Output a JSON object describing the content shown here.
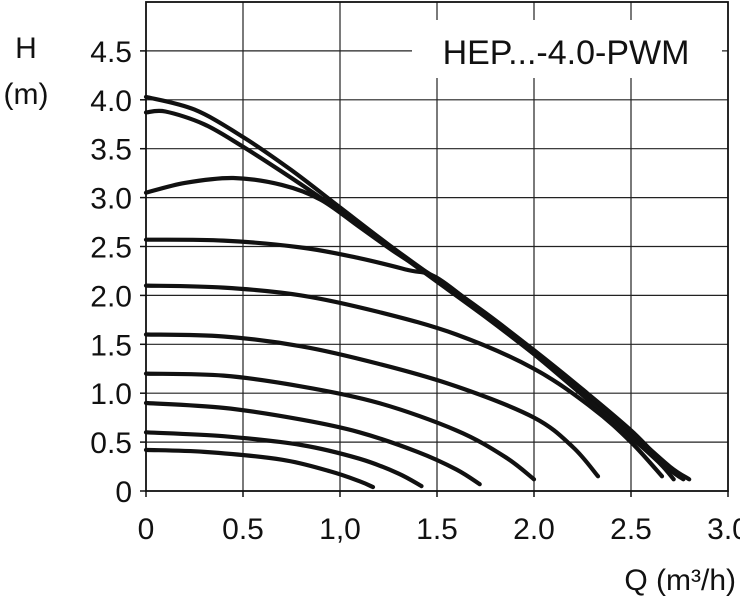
{
  "chart_data": {
    "type": "line",
    "title": "HEP...-4.0-PWM",
    "ylabel_symbol": "H",
    "ylabel_unit": "(m)",
    "xlabel": "Q (m³/h)",
    "xlim": [
      0,
      3.0
    ],
    "ylim": [
      0,
      5.0
    ],
    "x_ticks": [
      0,
      0.5,
      1.0,
      1.5,
      2.0,
      2.5,
      3.0
    ],
    "x_tick_labels": [
      "0",
      "0.5",
      "1,0",
      "1.5",
      "2.0",
      "2.5",
      "3.0"
    ],
    "y_ticks": [
      0,
      0.5,
      1.0,
      1.5,
      2.0,
      2.5,
      3.0,
      3.5,
      4.0,
      4.5
    ],
    "y_tick_labels": [
      "0",
      "0.5",
      "1.0",
      "1.5",
      "2.0",
      "2.5",
      "3.0",
      "3.5",
      "4.0",
      "4.5"
    ],
    "grid": true,
    "series": [
      {
        "points": [
          [
            0,
            4.03
          ],
          [
            0.25,
            3.9
          ],
          [
            0.5,
            3.62
          ],
          [
            0.75,
            3.28
          ],
          [
            1.0,
            2.9
          ],
          [
            1.25,
            2.52
          ],
          [
            1.5,
            2.16
          ],
          [
            1.75,
            1.8
          ],
          [
            2.0,
            1.42
          ],
          [
            2.25,
            1.02
          ],
          [
            2.5,
            0.6
          ],
          [
            2.7,
            0.25
          ],
          [
            2.8,
            0.12
          ]
        ]
      },
      {
        "points": [
          [
            0,
            3.87
          ],
          [
            0.1,
            3.88
          ],
          [
            0.3,
            3.75
          ],
          [
            0.5,
            3.52
          ],
          [
            0.75,
            3.2
          ],
          [
            1.0,
            2.86
          ],
          [
            1.25,
            2.5
          ],
          [
            1.5,
            2.14
          ],
          [
            1.75,
            1.78
          ],
          [
            2.0,
            1.4
          ],
          [
            2.25,
            1.0
          ],
          [
            2.5,
            0.58
          ],
          [
            2.7,
            0.22
          ],
          [
            2.77,
            0.12
          ]
        ]
      },
      {
        "points": [
          [
            0,
            3.05
          ],
          [
            0.2,
            3.15
          ],
          [
            0.45,
            3.2
          ],
          [
            0.7,
            3.13
          ],
          [
            0.9,
            2.98
          ],
          [
            1.1,
            2.7
          ],
          [
            1.3,
            2.42
          ],
          [
            1.5,
            2.17
          ],
          [
            1.75,
            1.82
          ],
          [
            2.0,
            1.44
          ],
          [
            2.25,
            1.04
          ],
          [
            2.5,
            0.62
          ],
          [
            2.65,
            0.32
          ],
          [
            2.75,
            0.15
          ]
        ]
      },
      {
        "points": [
          [
            0,
            2.57
          ],
          [
            0.4,
            2.56
          ],
          [
            0.8,
            2.49
          ],
          [
            1.1,
            2.38
          ],
          [
            1.35,
            2.26
          ],
          [
            1.5,
            2.18
          ],
          [
            1.75,
            1.8
          ],
          [
            2.0,
            1.4
          ],
          [
            2.25,
            0.98
          ],
          [
            2.5,
            0.55
          ],
          [
            2.65,
            0.28
          ],
          [
            2.72,
            0.12
          ]
        ]
      },
      {
        "points": [
          [
            0,
            2.1
          ],
          [
            0.4,
            2.08
          ],
          [
            0.8,
            2.0
          ],
          [
            1.2,
            1.83
          ],
          [
            1.6,
            1.6
          ],
          [
            2.0,
            1.25
          ],
          [
            2.3,
            0.85
          ],
          [
            2.5,
            0.5
          ],
          [
            2.66,
            0.15
          ]
        ]
      },
      {
        "points": [
          [
            0,
            1.6
          ],
          [
            0.4,
            1.58
          ],
          [
            0.8,
            1.48
          ],
          [
            1.2,
            1.3
          ],
          [
            1.6,
            1.07
          ],
          [
            2.0,
            0.75
          ],
          [
            2.2,
            0.45
          ],
          [
            2.33,
            0.15
          ]
        ]
      },
      {
        "points": [
          [
            0,
            1.2
          ],
          [
            0.4,
            1.18
          ],
          [
            0.8,
            1.07
          ],
          [
            1.2,
            0.9
          ],
          [
            1.6,
            0.62
          ],
          [
            1.85,
            0.35
          ],
          [
            2.0,
            0.12
          ]
        ]
      },
      {
        "points": [
          [
            0,
            0.9
          ],
          [
            0.4,
            0.85
          ],
          [
            0.8,
            0.73
          ],
          [
            1.1,
            0.6
          ],
          [
            1.4,
            0.4
          ],
          [
            1.6,
            0.22
          ],
          [
            1.72,
            0.07
          ]
        ]
      },
      {
        "points": [
          [
            0,
            0.6
          ],
          [
            0.4,
            0.56
          ],
          [
            0.8,
            0.47
          ],
          [
            1.1,
            0.33
          ],
          [
            1.3,
            0.18
          ],
          [
            1.42,
            0.05
          ]
        ]
      },
      {
        "points": [
          [
            0,
            0.42
          ],
          [
            0.3,
            0.4
          ],
          [
            0.7,
            0.32
          ],
          [
            0.95,
            0.2
          ],
          [
            1.1,
            0.1
          ],
          [
            1.17,
            0.04
          ]
        ]
      }
    ]
  }
}
